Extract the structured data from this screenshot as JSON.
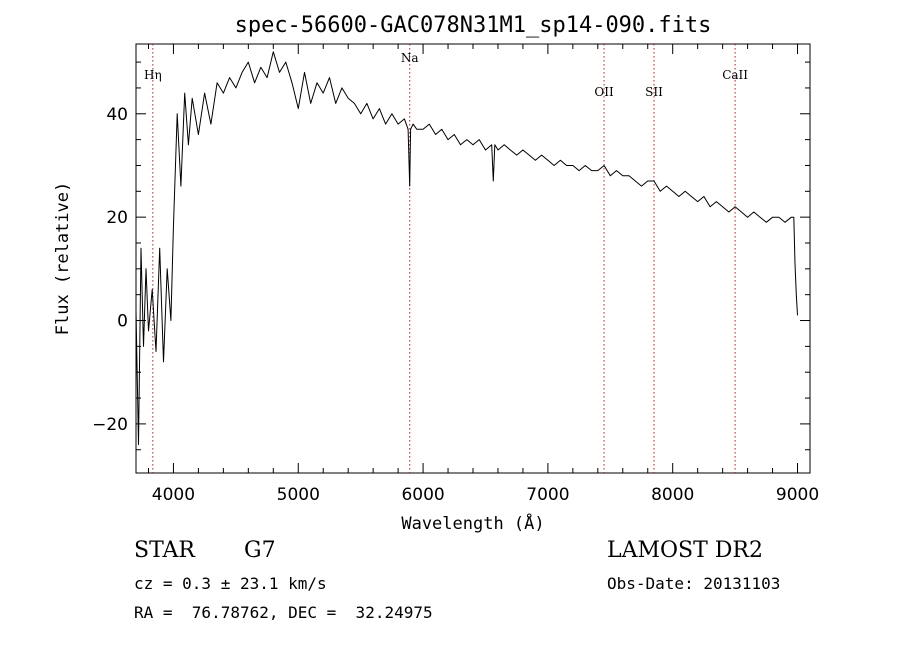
{
  "chart_data": {
    "type": "line",
    "title": "spec-56600-GAC078N31M1_sp14-090.fits",
    "xlabel": "Wavelength (Å)",
    "ylabel": "Flux (relative)",
    "xlim": [
      3700,
      9100
    ],
    "ylim": [
      -29.5,
      53.5
    ],
    "xticks": [
      4000,
      5000,
      6000,
      7000,
      8000,
      9000
    ],
    "yticks": [
      -20,
      0,
      20,
      40
    ],
    "grid": false,
    "series": [
      {
        "x": [
          3700,
          3720,
          3740,
          3760,
          3780,
          3800,
          3830,
          3860,
          3890,
          3920,
          3950,
          3980,
          4000,
          4030,
          4060,
          4090,
          4120,
          4150,
          4200,
          4250,
          4300,
          4350,
          4400,
          4450,
          4500,
          4550,
          4600,
          4650,
          4700,
          4750,
          4800,
          4850,
          4900,
          4950,
          5000,
          5050,
          5100,
          5150,
          5200,
          5250,
          5300,
          5350,
          5400,
          5450,
          5500,
          5550,
          5600,
          5650,
          5700,
          5750,
          5800,
          5850,
          5880,
          5893,
          5900,
          5920,
          5950,
          6000,
          6050,
          6100,
          6150,
          6200,
          6250,
          6300,
          6350,
          6400,
          6450,
          6500,
          6550,
          6563,
          6575,
          6600,
          6650,
          6700,
          6750,
          6800,
          6850,
          6900,
          6950,
          7000,
          7050,
          7100,
          7150,
          7200,
          7250,
          7300,
          7350,
          7400,
          7450,
          7500,
          7550,
          7600,
          7650,
          7700,
          7750,
          7800,
          7850,
          7900,
          7950,
          8000,
          8050,
          8100,
          8150,
          8200,
          8250,
          8300,
          8350,
          8400,
          8450,
          8500,
          8550,
          8600,
          8650,
          8700,
          8750,
          8800,
          8850,
          8900,
          8950,
          8970,
          8980,
          8990,
          9000
        ],
        "y": [
          2,
          -24,
          14,
          -5,
          10,
          -2,
          6,
          -6,
          14,
          -8,
          10,
          0,
          18,
          40,
          26,
          44,
          34,
          43,
          36,
          44,
          38,
          46,
          44,
          47,
          45,
          48,
          50,
          46,
          49,
          47,
          52,
          48,
          50,
          46,
          41,
          48,
          42,
          46,
          44,
          47,
          42,
          45,
          43,
          42,
          40,
          42,
          39,
          41,
          38,
          40,
          38,
          39,
          37,
          26,
          37,
          38,
          37,
          37,
          38,
          36,
          37,
          35,
          36,
          34,
          35,
          34,
          35,
          33,
          34,
          27,
          34,
          33,
          34,
          33,
          32,
          33,
          32,
          31,
          32,
          31,
          30,
          31,
          30,
          30,
          29,
          30,
          29,
          29,
          30,
          28,
          29,
          28,
          28,
          27,
          26,
          27,
          27,
          25,
          26,
          25,
          24,
          25,
          24,
          23,
          24,
          22,
          23,
          22,
          21,
          22,
          21,
          20,
          21,
          20,
          19,
          20,
          20,
          19,
          20,
          20,
          11,
          5,
          1
        ]
      }
    ],
    "annotations": [
      {
        "label": "Hη",
        "x": 3835
      },
      {
        "label": "Na",
        "x": 5893
      },
      {
        "label": "OII",
        "x": 7450
      },
      {
        "label": "SII",
        "x": 7850
      },
      {
        "label": "CaII",
        "x": 8500
      }
    ]
  },
  "info": {
    "object_type": "STAR",
    "subclass": "G7",
    "survey": "LAMOST DR2",
    "redshift_line": "cz = 0.3 ± 23.1 km/s",
    "obs_date_line": "Obs-Date: 20131103",
    "coords_line": "RA =  76.78762, DEC =  32.24975"
  },
  "colors": {
    "spectrum": "#000000",
    "line_markers": "#b22222",
    "axes": "#000000"
  }
}
